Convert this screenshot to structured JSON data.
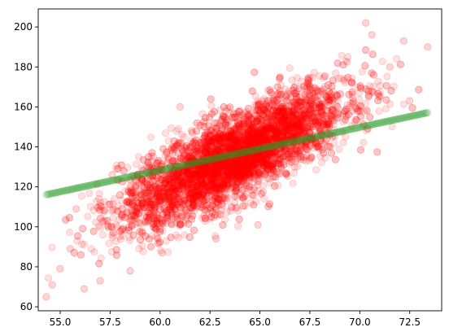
{
  "chart_data": {
    "type": "scatter",
    "title": "",
    "xlabel": "",
    "ylabel": "",
    "xlim": [
      53.9,
      74.1
    ],
    "ylim": [
      58,
      209
    ],
    "x_ticks": [
      55.0,
      57.5,
      60.0,
      62.5,
      65.0,
      67.5,
      70.0,
      72.5
    ],
    "x_tick_labels": [
      "55.0",
      "57.5",
      "60.0",
      "62.5",
      "65.0",
      "67.5",
      "70.0",
      "72.5"
    ],
    "y_ticks": [
      60,
      80,
      100,
      120,
      140,
      160,
      180,
      200
    ],
    "y_tick_labels": [
      "60",
      "80",
      "100",
      "120",
      "140",
      "160",
      "180",
      "200"
    ],
    "grid": false,
    "legend": "none",
    "series": [
      {
        "kind": "observed-points",
        "color": "#ff0000",
        "alpha": 0.12,
        "count": 5000,
        "x_mean": 63.7,
        "x_std": 2.8,
        "slope": 4.8,
        "intercept": -171.0,
        "residual_std": 10.5,
        "x_range": [
          54.3,
          73.4
        ],
        "sample_points": [
          [
            54.3,
            65
          ],
          [
            54.6,
            71
          ],
          [
            55.0,
            79
          ],
          [
            55.5,
            89
          ],
          [
            55.8,
            109
          ],
          [
            56.2,
            69
          ],
          [
            57.0,
            73
          ],
          [
            57.6,
            126
          ],
          [
            58.5,
            78
          ],
          [
            60.1,
            87
          ],
          [
            62.8,
            94
          ],
          [
            64.9,
            101
          ],
          [
            70.3,
            202
          ],
          [
            70.6,
            196
          ],
          [
            71.5,
            180
          ],
          [
            72.2,
            193
          ],
          [
            73.4,
            190
          ],
          [
            72.5,
            163
          ],
          [
            69.6,
            158
          ],
          [
            66.0,
            166
          ],
          [
            61.0,
            160
          ],
          [
            63.5,
            139
          ],
          [
            62.0,
            120
          ],
          [
            65.5,
            150
          ]
        ]
      },
      {
        "kind": "fitted-line-points",
        "color": "#2ca02c",
        "alpha": 0.12,
        "count": 400,
        "slope": 2.15,
        "intercept": -0.7,
        "x_range": [
          54.3,
          73.4
        ]
      }
    ]
  }
}
